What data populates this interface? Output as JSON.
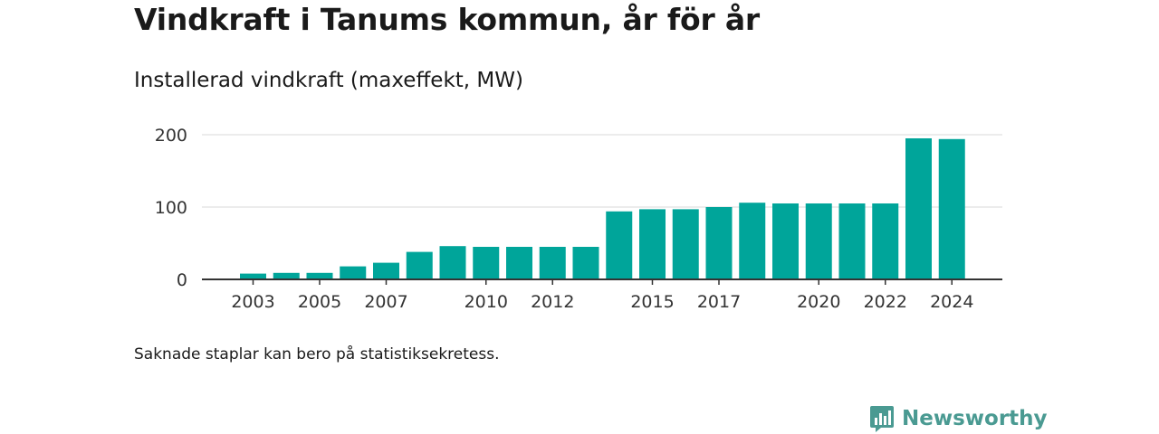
{
  "header": {
    "title": "Vindkraft i Tanums kommun, år för år",
    "subtitle": "Installerad vindkraft (maxeffekt, MW)"
  },
  "footer": {
    "note": "Saknade staplar kan bero på statistiksekretess.",
    "brand": "Newsworthy"
  },
  "colors": {
    "bar": "#00a59a",
    "grid": "#d9d9d9",
    "axis": "#333333",
    "brand": "#4a9a92"
  },
  "chart_data": {
    "type": "bar",
    "categories": [
      "2003",
      "2004",
      "2005",
      "2006",
      "2007",
      "2008",
      "2009",
      "2010",
      "2011",
      "2012",
      "2013",
      "2014",
      "2015",
      "2016",
      "2017",
      "2018",
      "2019",
      "2020",
      "2021",
      "2022",
      "2023",
      "2024"
    ],
    "values": [
      8,
      9,
      9,
      18,
      23,
      38,
      46,
      45,
      45,
      45,
      45,
      94,
      97,
      97,
      100,
      106,
      105,
      105,
      105,
      105,
      195,
      194
    ],
    "xtick_labels": [
      "2003",
      "2005",
      "2007",
      "2010",
      "2012",
      "2015",
      "2017",
      "2020",
      "2022",
      "2024"
    ],
    "yticks": [
      0,
      100,
      200
    ],
    "ylim": [
      0,
      200
    ],
    "xlabel": "",
    "ylabel": "",
    "grid": true
  }
}
